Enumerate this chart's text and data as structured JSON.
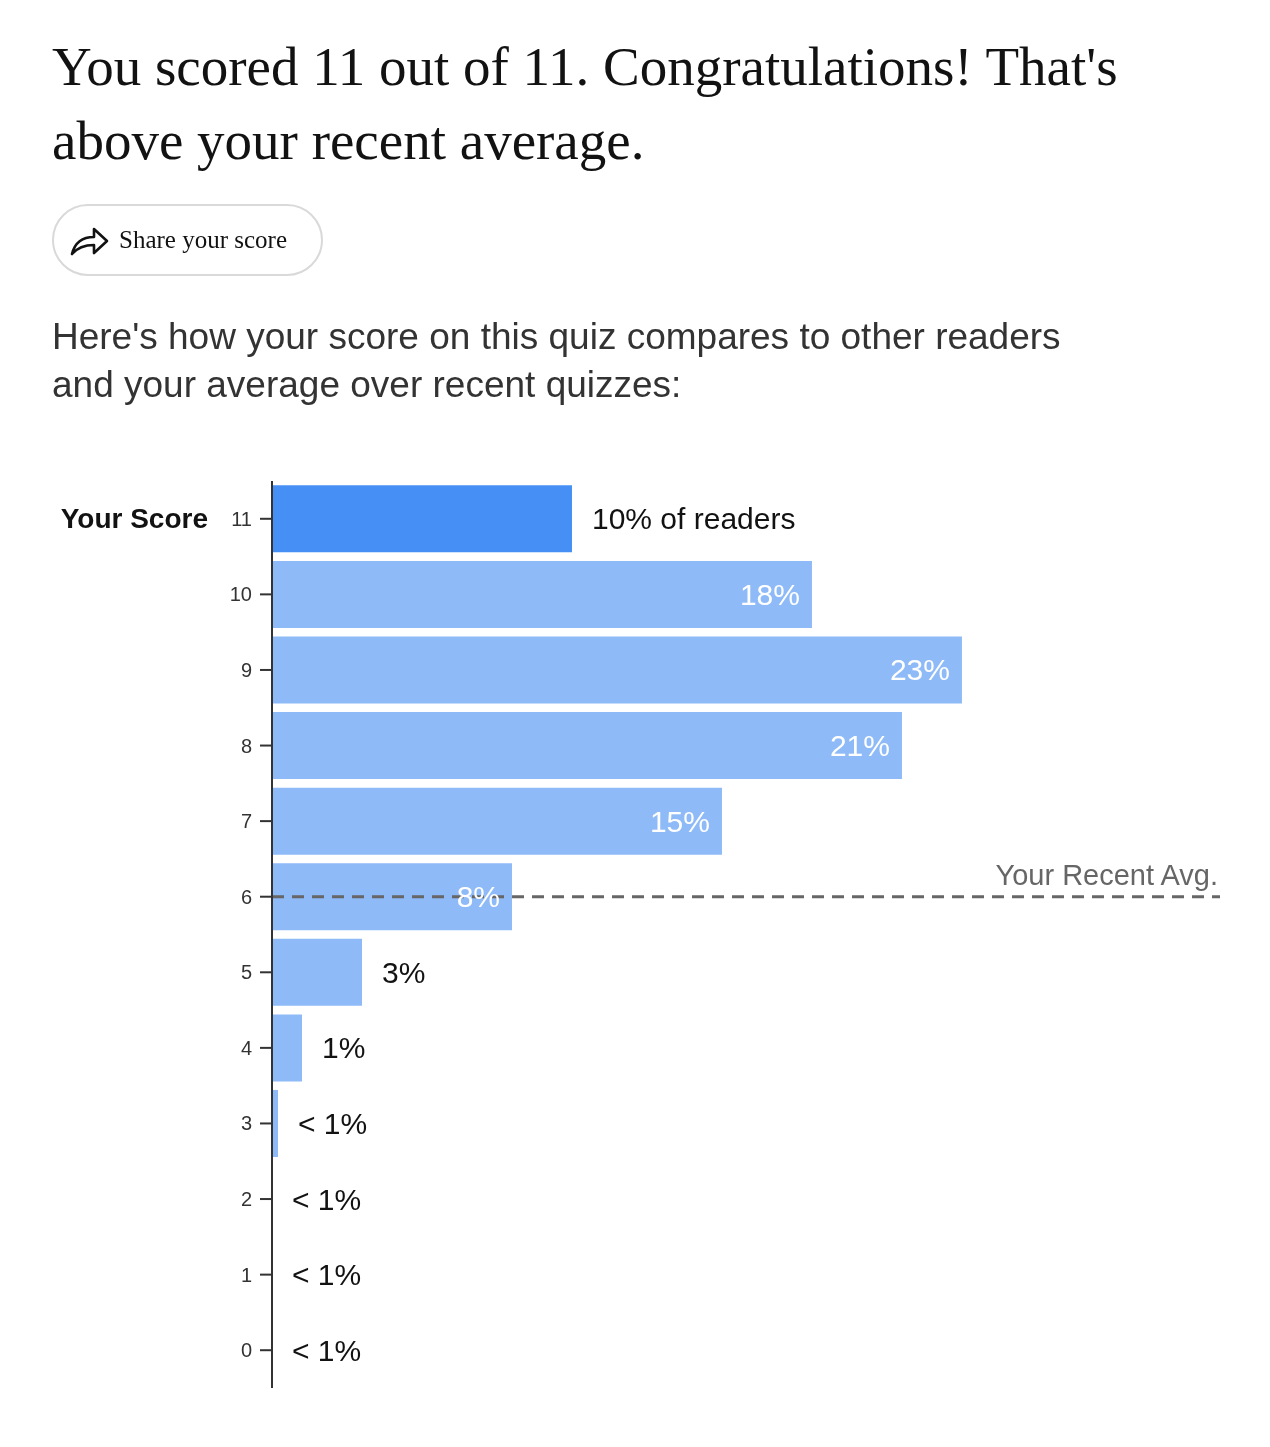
{
  "chart_data": {
    "type": "bar",
    "orientation": "horizontal",
    "title": "You scored 11 out of 11. Congratulations! That's above your recent average.",
    "subtitle": "Here's how your score on this quiz compares to other readers and your average over recent quizzes:",
    "categories": [
      "11",
      "10",
      "9",
      "8",
      "7",
      "6",
      "5",
      "4",
      "3",
      "2",
      "1",
      "0"
    ],
    "values": [
      10,
      18,
      23,
      21,
      15,
      8,
      3,
      1,
      0.2,
      0,
      0,
      0
    ],
    "colors": [
      "#4690f5",
      "#8ebaf7",
      "#8ebaf7",
      "#8ebaf7",
      "#8ebaf7",
      "#8ebaf7",
      "#8ebaf7",
      "#8ebaf7",
      "#8ebaf7",
      "#8ebaf7",
      "#8ebaf7",
      "#8ebaf7"
    ],
    "value_labels": [
      "10% of readers",
      "18%",
      "23%",
      "21%",
      "15%",
      "8%",
      "3%",
      "1%",
      "< 1%",
      "< 1%",
      "< 1%",
      "< 1%"
    ],
    "ref_lines": [
      {
        "axis": "y",
        "value": "6",
        "label": "Your Recent Avg.",
        "color": "#666666",
        "line_style": "dashed"
      }
    ],
    "annotations": [
      "Your Score",
      "Share your score"
    ]
  }
}
